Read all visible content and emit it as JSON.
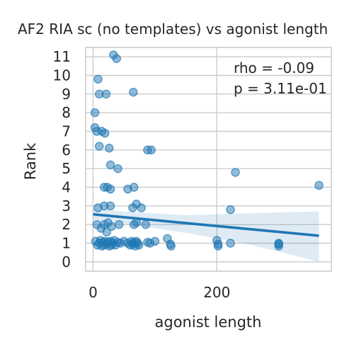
{
  "chart_data": {
    "type": "scatter",
    "title": "AF2 RIA sc (no templates) vs agonist length",
    "xlabel": "agonist length",
    "ylabel": "Rank",
    "xlim": [
      -12,
      385
    ],
    "ylim": [
      -0.5,
      11.5
    ],
    "xticks": [
      0,
      200
    ],
    "yticks": [
      0,
      1,
      2,
      3,
      4,
      5,
      6,
      7,
      8,
      9,
      10,
      11
    ],
    "grid": true,
    "point_color": "#1f77b4",
    "annotations": [
      "rho = -0.09",
      "p = 3.11e-01"
    ],
    "regression": {
      "x": [
        0,
        365
      ],
      "y": [
        2.55,
        1.4
      ]
    },
    "confidence_band": {
      "x": [
        0,
        50,
        100,
        150,
        200,
        250,
        300,
        365
      ],
      "lower": [
        2.25,
        2.05,
        1.8,
        1.55,
        1.25,
        0.95,
        0.55,
        0.0
      ],
      "upper": [
        2.85,
        2.7,
        2.6,
        2.5,
        2.55,
        2.6,
        2.65,
        2.7
      ]
    },
    "points": [
      {
        "x": 33,
        "y": 11.1
      },
      {
        "x": 38,
        "y": 10.9
      },
      {
        "x": 8,
        "y": 9.8
      },
      {
        "x": 10,
        "y": 9.0
      },
      {
        "x": 21,
        "y": 9.0
      },
      {
        "x": 65,
        "y": 9.1
      },
      {
        "x": 3,
        "y": 8.0
      },
      {
        "x": 3,
        "y": 7.2
      },
      {
        "x": 6,
        "y": 7.0
      },
      {
        "x": 14,
        "y": 7.0
      },
      {
        "x": 19,
        "y": 6.9
      },
      {
        "x": 10,
        "y": 6.2
      },
      {
        "x": 26,
        "y": 6.1
      },
      {
        "x": 88,
        "y": 6.0
      },
      {
        "x": 94,
        "y": 6.0
      },
      {
        "x": 28,
        "y": 5.2
      },
      {
        "x": 40,
        "y": 5.0
      },
      {
        "x": 230,
        "y": 4.8
      },
      {
        "x": 18,
        "y": 4.0
      },
      {
        "x": 23,
        "y": 4.0
      },
      {
        "x": 28,
        "y": 3.9
      },
      {
        "x": 56,
        "y": 3.9
      },
      {
        "x": 66,
        "y": 4.0
      },
      {
        "x": 365,
        "y": 4.1
      },
      {
        "x": 70,
        "y": 3.1
      },
      {
        "x": 64,
        "y": 2.9
      },
      {
        "x": 78,
        "y": 2.9
      },
      {
        "x": 8,
        "y": 2.9
      },
      {
        "x": 18,
        "y": 3.0
      },
      {
        "x": 28,
        "y": 3.0
      },
      {
        "x": 222,
        "y": 2.8
      },
      {
        "x": 70,
        "y": 2.1
      },
      {
        "x": 85,
        "y": 2.0
      },
      {
        "x": 66,
        "y": 2.0
      },
      {
        "x": 6,
        "y": 2.0
      },
      {
        "x": 18,
        "y": 2.0
      },
      {
        "x": 24,
        "y": 2.1
      },
      {
        "x": 30,
        "y": 1.9
      },
      {
        "x": 42,
        "y": 2.0
      },
      {
        "x": 13,
        "y": 1.8
      },
      {
        "x": 22,
        "y": 1.6
      },
      {
        "x": 4,
        "y": 1.1
      },
      {
        "x": 7,
        "y": 0.9
      },
      {
        "x": 10,
        "y": 1.0
      },
      {
        "x": 12,
        "y": 1.15
      },
      {
        "x": 14,
        "y": 0.85
      },
      {
        "x": 16,
        "y": 1.05
      },
      {
        "x": 18,
        "y": 0.9
      },
      {
        "x": 20,
        "y": 1.1
      },
      {
        "x": 22,
        "y": 0.95
      },
      {
        "x": 24,
        "y": 1.05
      },
      {
        "x": 26,
        "y": 0.85
      },
      {
        "x": 28,
        "y": 1.1
      },
      {
        "x": 30,
        "y": 0.9
      },
      {
        "x": 32,
        "y": 1.0
      },
      {
        "x": 34,
        "y": 1.15
      },
      {
        "x": 36,
        "y": 0.9
      },
      {
        "x": 40,
        "y": 1.05
      },
      {
        "x": 44,
        "y": 1.0
      },
      {
        "x": 50,
        "y": 1.1
      },
      {
        "x": 56,
        "y": 1.0
      },
      {
        "x": 60,
        "y": 0.9
      },
      {
        "x": 62,
        "y": 1.1
      },
      {
        "x": 64,
        "y": 0.95
      },
      {
        "x": 66,
        "y": 1.05
      },
      {
        "x": 68,
        "y": 0.85
      },
      {
        "x": 70,
        "y": 1.1
      },
      {
        "x": 72,
        "y": 1.0
      },
      {
        "x": 74,
        "y": 0.9
      },
      {
        "x": 88,
        "y": 1.05
      },
      {
        "x": 92,
        "y": 1.0
      },
      {
        "x": 100,
        "y": 1.1
      },
      {
        "x": 120,
        "y": 1.25
      },
      {
        "x": 125,
        "y": 0.95
      },
      {
        "x": 126,
        "y": 0.85
      },
      {
        "x": 200,
        "y": 1.15
      },
      {
        "x": 202,
        "y": 0.95
      },
      {
        "x": 202,
        "y": 0.85
      },
      {
        "x": 222,
        "y": 1.0
      },
      {
        "x": 300,
        "y": 1.0
      },
      {
        "x": 300,
        "y": 0.95
      },
      {
        "x": 300,
        "y": 0.85
      }
    ]
  }
}
